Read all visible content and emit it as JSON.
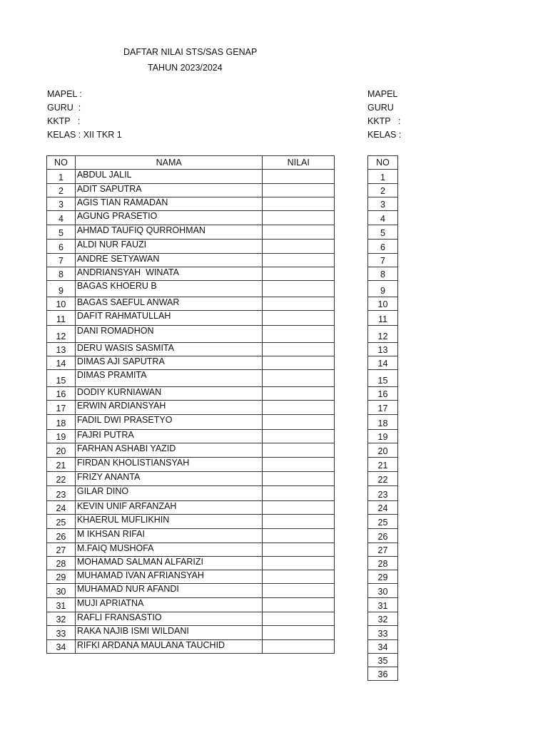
{
  "title_line1": "DAFTAR NILAI STS/SAS GENAP",
  "title_line2": "TAHUN 2023/2024",
  "left_info": {
    "mapel": "MAPEL :",
    "guru": "GURU  :",
    "kktp": "KKTP   :",
    "kelas": "KELAS : XII TKR 1"
  },
  "right_info": {
    "mapel": "MAPEL",
    "guru": "GURU",
    "kktp": "KKTP   :",
    "kelas": "KELAS :"
  },
  "table": {
    "headers": {
      "no": "NO",
      "nama": "NAMA",
      "nilai": "NILAI"
    },
    "rows": [
      {
        "no": "1",
        "nama": "ABDUL JALIL",
        "nilai": ""
      },
      {
        "no": "2",
        "nama": "ADIT SAPUTRA",
        "nilai": ""
      },
      {
        "no": "3",
        "nama": "AGIS TIAN RAMADAN",
        "nilai": ""
      },
      {
        "no": "4",
        "nama": "AGUNG PRASETIO",
        "nilai": ""
      },
      {
        "no": "5",
        "nama": "AHMAD TAUFIQ QURROHMAN",
        "nilai": ""
      },
      {
        "no": "6",
        "nama": "ALDI NUR FAUZI",
        "nilai": ""
      },
      {
        "no": "7",
        "nama": "ANDRE SETYAWAN",
        "nilai": ""
      },
      {
        "no": "8",
        "nama": "ANDRIANSYAH  WINATA",
        "nilai": ""
      },
      {
        "no": "9",
        "nama": "BAGAS KHOERU B",
        "nilai": ""
      },
      {
        "no": "10",
        "nama": "BAGAS SAEFUL ANWAR",
        "nilai": ""
      },
      {
        "no": "11",
        "nama": "DAFIT RAHMATULLAH",
        "nilai": ""
      },
      {
        "no": "12",
        "nama": "DANI ROMADHON",
        "nilai": ""
      },
      {
        "no": "13",
        "nama": "DERU WASIS SASMITA",
        "nilai": ""
      },
      {
        "no": "14",
        "nama": "DIMAS AJI SAPUTRA",
        "nilai": ""
      },
      {
        "no": "15",
        "nama": "DIMAS PRAMITA",
        "nilai": ""
      },
      {
        "no": "16",
        "nama": "DODIY KURNIAWAN",
        "nilai": ""
      },
      {
        "no": "17",
        "nama": "ERWIN ARDIANSYAH",
        "nilai": ""
      },
      {
        "no": "18",
        "nama": "FADIL DWI PRASETYO",
        "nilai": ""
      },
      {
        "no": "19",
        "nama": "FAJRI PUTRA",
        "nilai": ""
      },
      {
        "no": "20",
        "nama": "FARHAN ASHABI YAZID",
        "nilai": ""
      },
      {
        "no": "21",
        "nama": "FIRDAN KHOLISTIANSYAH",
        "nilai": ""
      },
      {
        "no": "22",
        "nama": "FRIZY ANANTA",
        "nilai": ""
      },
      {
        "no": "23",
        "nama": "GILAR DINO",
        "nilai": ""
      },
      {
        "no": "24",
        "nama": "KEVIN UNIF ARFANZAH",
        "nilai": ""
      },
      {
        "no": "25",
        "nama": "KHAERUL MUFLIKHIN",
        "nilai": ""
      },
      {
        "no": "26",
        "nama": "M IKHSAN RIFAI",
        "nilai": ""
      },
      {
        "no": "27",
        "nama": "M.FAIQ MUSHOFA",
        "nilai": ""
      },
      {
        "no": "28",
        "nama": "MOHAMAD SALMAN ALFARIZI",
        "nilai": ""
      },
      {
        "no": "29",
        "nama": "MUHAMAD IVAN AFRIANSYAH",
        "nilai": ""
      },
      {
        "no": "30",
        "nama": "MUHAMAD NUR AFANDI",
        "nilai": ""
      },
      {
        "no": "31",
        "nama": "MUJI APRIATNA",
        "nilai": ""
      },
      {
        "no": "32",
        "nama": "RAFLI FRANSASTIO",
        "nilai": ""
      },
      {
        "no": "33",
        "nama": "RAKA NAJIB ISMI WILDANI",
        "nilai": ""
      },
      {
        "no": "34",
        "nama": "RIFKI ARDANA MAULANA TAUCHID",
        "nilai": ""
      }
    ]
  },
  "right_table": {
    "header": "NO",
    "numbers": [
      "1",
      "2",
      "3",
      "4",
      "5",
      "6",
      "7",
      "8",
      "9",
      "10",
      "11",
      "12",
      "13",
      "14",
      "15",
      "16",
      "17",
      "18",
      "19",
      "20",
      "21",
      "22",
      "23",
      "24",
      "25",
      "26",
      "27",
      "28",
      "29",
      "30",
      "31",
      "32",
      "33",
      "34",
      "35",
      "36"
    ]
  }
}
